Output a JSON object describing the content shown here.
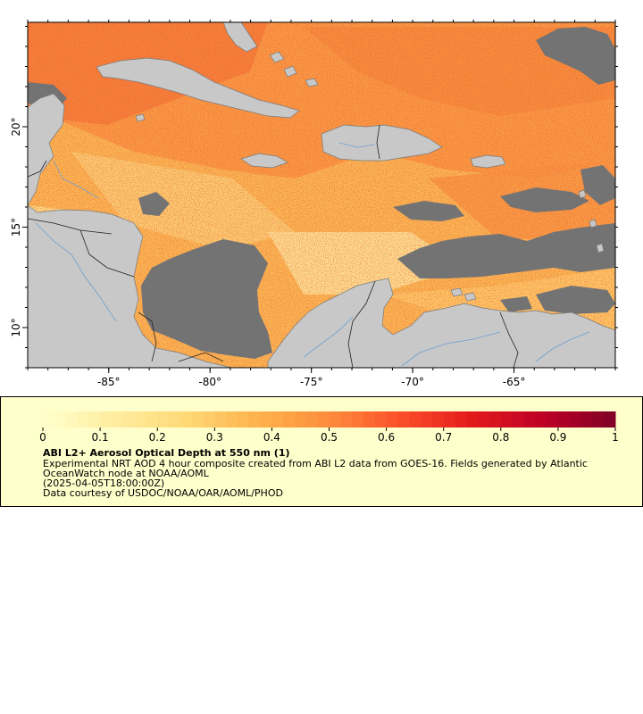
{
  "map": {
    "lon_range": [
      -89,
      -60
    ],
    "lat_range": [
      8,
      25.2
    ],
    "lon_ticks": [
      {
        "value": -85,
        "label": "-85°"
      },
      {
        "value": -80,
        "label": "-80°"
      },
      {
        "value": -75,
        "label": "-75°"
      },
      {
        "value": -70,
        "label": "-70°"
      },
      {
        "value": -65,
        "label": "-65°"
      }
    ],
    "lat_ticks": [
      {
        "value": 10,
        "label": "10°"
      },
      {
        "value": 15,
        "label": "15°"
      },
      {
        "value": 20,
        "label": "20°"
      }
    ],
    "colors": {
      "land": "#c8c8c8",
      "nodata": "#737373",
      "coast": "#7a7a7a",
      "rivers": "#6f9fd0",
      "borders": "#222222"
    }
  },
  "legend": {
    "title": "ABI L2+ Aerosol Optical Depth at 550 nm (1)",
    "description": "Experimental NRT AOD 4 hour composite created from ABI L2 data from GOES-16. Fields generated by Atlantic OceanWatch node at NOAA/AOML",
    "time": "(2025-04-05T18:00:00Z)",
    "credit": "Data courtesy of USDOC/NOAA/OAR/AOML/PHOD",
    "scale_min": 0,
    "scale_max": 1,
    "tick_labels": [
      "0",
      "0.1",
      "0.2",
      "0.3",
      "0.4",
      "0.5",
      "0.6",
      "0.7",
      "0.8",
      "0.9",
      "1"
    ],
    "palette": [
      "#ffffcc",
      "#ffeda0",
      "#fed976",
      "#feb24c",
      "#fd8d3c",
      "#fc4e2a",
      "#e31a1c",
      "#bd0026",
      "#800026"
    ]
  }
}
